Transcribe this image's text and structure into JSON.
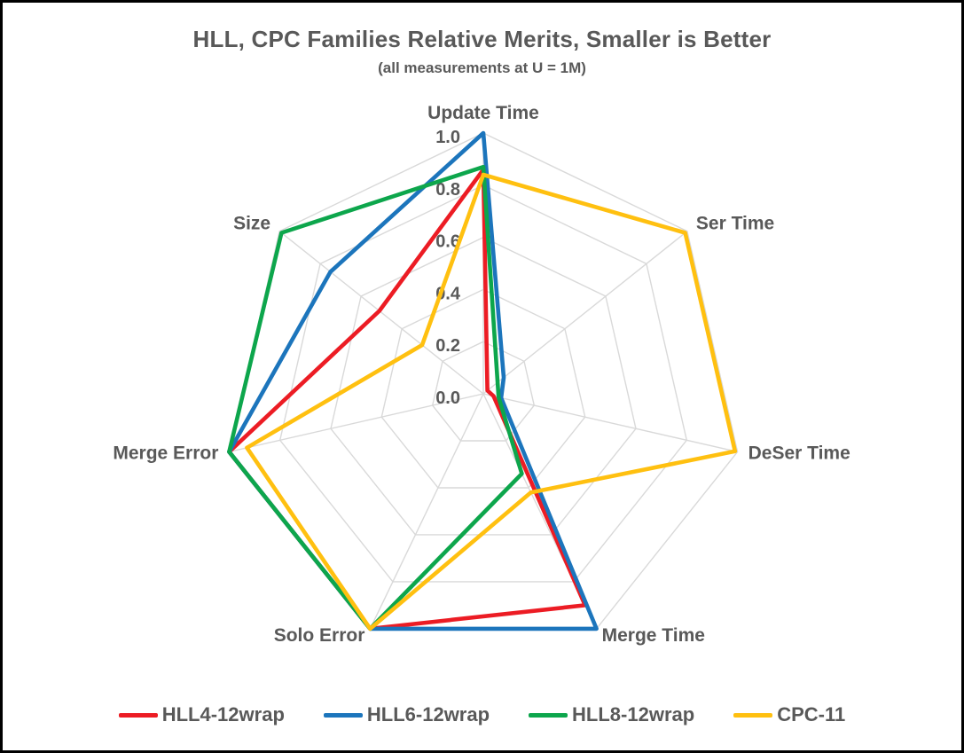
{
  "title": "HLL, CPC Families Relative Merits, Smaller is Better",
  "subtitle": "(all measurements at U = 1M)",
  "colors": {
    "text": "#595959",
    "grid": "#D9D9D9",
    "background": "#FFFFFF",
    "frame_border": "#000000"
  },
  "chart_data": {
    "type": "radar",
    "title": "HLL, CPC Families Relative Merits, Smaller is Better",
    "subtitle": "(all measurements at U = 1M)",
    "axes": [
      "Update Time",
      "Ser Time",
      "DeSer Time",
      "Merge Time",
      "Solo Error",
      "Merge Error",
      "Size"
    ],
    "rlim": [
      0.0,
      1.0
    ],
    "radial_tick_values": [
      1.0,
      0.8,
      0.6,
      0.4,
      0.2,
      0.0
    ],
    "radial_tick_labels": [
      "1.0",
      "0.8",
      "0.6",
      "0.4",
      "0.2",
      "0.0"
    ],
    "grid_rings": [
      0.2,
      0.4,
      0.6,
      0.8,
      1.0
    ],
    "grid_spokes": true,
    "legend_position": "bottom",
    "series": [
      {
        "name": "HLL4-12wrap",
        "color": "#EC1C24",
        "values": [
          0.86,
          0.02,
          0.04,
          0.9,
          1.0,
          1.0,
          0.51
        ]
      },
      {
        "name": "HLL6-12wrap",
        "color": "#1C75BC",
        "values": [
          1.0,
          0.1,
          0.07,
          1.0,
          1.0,
          1.0,
          0.75
        ]
      },
      {
        "name": "HLL8-12wrap",
        "color": "#0DA64C",
        "values": [
          0.87,
          0.07,
          0.06,
          0.34,
          1.0,
          1.0,
          0.99
        ]
      },
      {
        "name": "CPC-11",
        "color": "#FFC010",
        "values": [
          0.84,
          0.99,
          0.99,
          0.42,
          1.0,
          0.93,
          0.3
        ]
      }
    ]
  }
}
